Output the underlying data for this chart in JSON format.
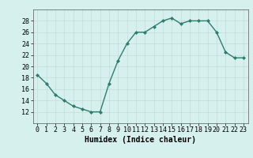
{
  "x": [
    0,
    1,
    2,
    3,
    4,
    5,
    6,
    7,
    8,
    9,
    10,
    11,
    12,
    13,
    14,
    15,
    16,
    17,
    18,
    19,
    20,
    21,
    22,
    23
  ],
  "y": [
    18.5,
    17.0,
    15.0,
    14.0,
    13.0,
    12.5,
    12.0,
    12.0,
    17.0,
    21.0,
    24.0,
    26.0,
    26.0,
    27.0,
    28.0,
    28.5,
    27.5,
    28.0,
    28.0,
    28.0,
    26.0,
    22.5,
    21.5,
    21.5
  ],
  "line_color": "#2e7d6e",
  "marker": "D",
  "marker_size": 2,
  "bg_color": "#d6f0ee",
  "grid_color": "#c4ddd9",
  "xlabel": "Humidex (Indice chaleur)",
  "xlim": [
    -0.5,
    23.5
  ],
  "ylim": [
    10,
    30
  ],
  "yticks": [
    12,
    14,
    16,
    18,
    20,
    22,
    24,
    26,
    28
  ],
  "xticks": [
    0,
    1,
    2,
    3,
    4,
    5,
    6,
    7,
    8,
    9,
    10,
    11,
    12,
    13,
    14,
    15,
    16,
    17,
    18,
    19,
    20,
    21,
    22,
    23
  ],
  "xlabel_fontsize": 7,
  "tick_fontsize": 6,
  "linewidth": 1.0
}
